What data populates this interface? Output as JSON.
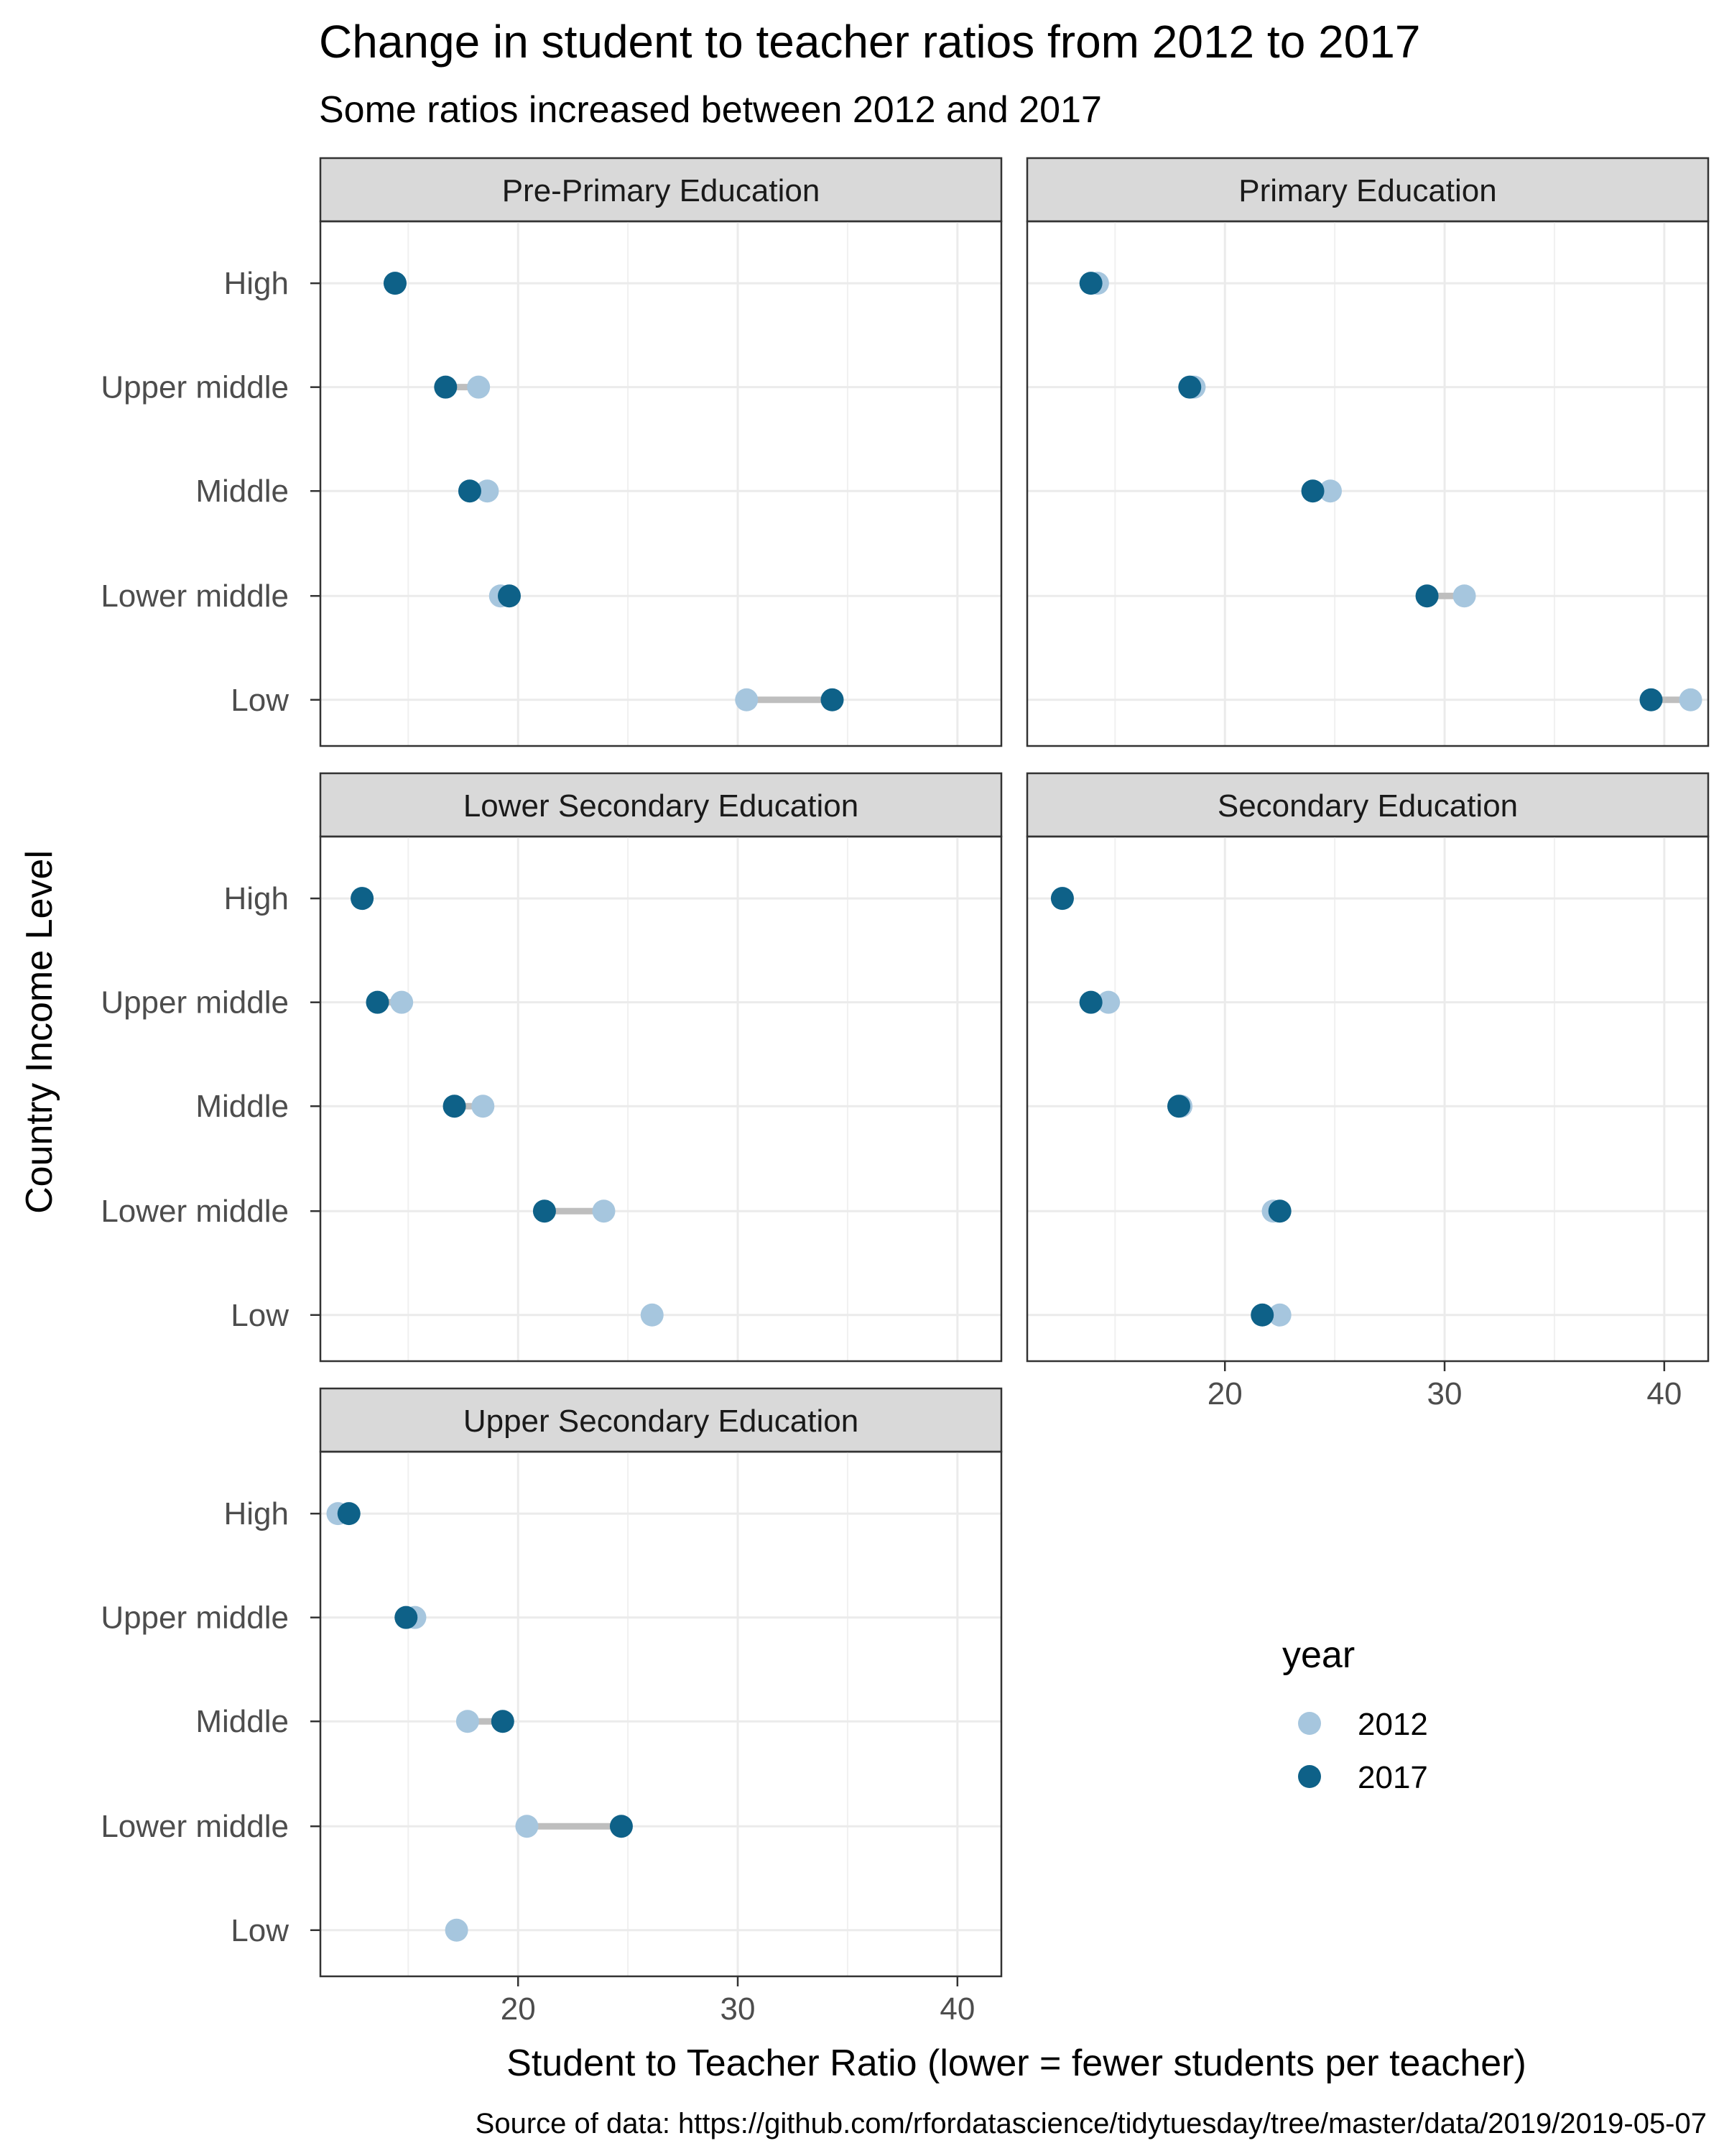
{
  "chart_data": {
    "type": "scatter",
    "subtype": "dumbbell",
    "title": "Change in student to teacher ratios from 2012 to 2017",
    "subtitle": "Some ratios increased between 2012 and 2017",
    "xlabel": "Student to Teacher Ratio (lower = fewer students per teacher)",
    "ylabel": "Country Income Level",
    "caption": "Source of data: https://github.com/rfordatascience/tidytuesday/tree/master/data/2019/2019-05-07",
    "xlim": [
      11,
      42
    ],
    "x_ticks": [
      20,
      30,
      40
    ],
    "x_tick_labels": [
      "20",
      "30",
      "40"
    ],
    "categories": [
      "High",
      "Upper middle",
      "Middle",
      "Lower middle",
      "Low"
    ],
    "grid": true,
    "legend": {
      "title": "year",
      "position": "right",
      "entries": [
        {
          "label": "2012",
          "color": "#a6c6de"
        },
        {
          "label": "2017",
          "color": "#0e6188"
        }
      ]
    },
    "colors": {
      "y2012": "#a6c6de",
      "y2017": "#0e6188",
      "segment": "#bebebe",
      "strip": "#d9d9d9"
    },
    "panels": [
      {
        "label": "Pre-Primary Education",
        "series": [
          {
            "name": "2012",
            "values": [
              14.4,
              18.2,
              18.6,
              19.2,
              30.4
            ]
          },
          {
            "name": "2017",
            "values": [
              14.4,
              16.7,
              17.8,
              19.6,
              34.3
            ]
          }
        ]
      },
      {
        "label": "Primary Education",
        "series": [
          {
            "name": "2012",
            "values": [
              14.2,
              18.6,
              24.8,
              30.9,
              41.2
            ]
          },
          {
            "name": "2017",
            "values": [
              13.9,
              18.4,
              24.0,
              29.2,
              39.4
            ]
          }
        ]
      },
      {
        "label": "Lower Secondary Education",
        "series": [
          {
            "name": "2012",
            "values": null
          },
          {
            "name": "2017",
            "values": null
          }
        ]
      },
      {
        "label": "Secondary Education",
        "series": [
          {
            "name": "2012",
            "values": [
              12.6,
              14.7,
              18.0,
              22.2,
              22.5
            ]
          },
          {
            "name": "2017",
            "values": [
              12.6,
              13.9,
              17.9,
              22.5,
              21.7
            ]
          }
        ]
      },
      {
        "label": "Upper Secondary Education",
        "series": [
          {
            "name": "2012",
            "values": [
              11.8,
              15.3,
              17.7,
              20.4,
              17.2
            ]
          },
          {
            "name": "2017",
            "values": [
              12.3,
              14.9,
              19.3,
              24.7,
              null
            ]
          }
        ]
      }
    ]
  }
}
